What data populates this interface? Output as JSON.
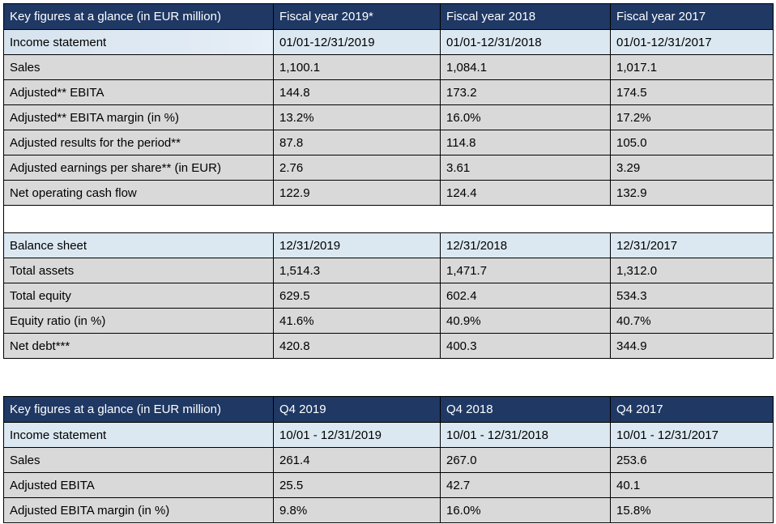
{
  "table1": {
    "headers": [
      "Key figures at a glance (in EUR million)",
      "Fiscal year 2019*",
      "Fiscal year 2018",
      "Fiscal year 2017"
    ],
    "section1": [
      "Income statement",
      "01/01-12/31/2019",
      "01/01-12/31/2018",
      "01/01-12/31/2017"
    ],
    "rows1": [
      [
        "Sales",
        "1,100.1",
        "1,084.1",
        "1,017.1"
      ],
      [
        "Adjusted** EBITA",
        "144.8",
        "173.2",
        "174.5"
      ],
      [
        "Adjusted** EBITA margin (in %)",
        "13.2%",
        "16.0%",
        "17.2%"
      ],
      [
        "Adjusted results for the period**",
        "87.8",
        "114.8",
        "105.0"
      ],
      [
        "Adjusted earnings per share** (in EUR)",
        "2.76",
        "3.61",
        "3.29"
      ],
      [
        "Net operating cash flow",
        "122.9",
        "124.4",
        "132.9"
      ]
    ],
    "section2": [
      "Balance sheet",
      "12/31/2019",
      "12/31/2018",
      "12/31/2017"
    ],
    "rows2": [
      [
        "Total assets",
        "1,514.3",
        "1,471.7",
        "1,312.0"
      ],
      [
        "Total equity",
        "629.5",
        "602.4",
        "534.3"
      ],
      [
        "Equity ratio (in %)",
        "41.6%",
        "40.9%",
        "40.7%"
      ],
      [
        "Net debt***",
        "420.8",
        "400.3",
        "344.9"
      ]
    ]
  },
  "table2": {
    "headers": [
      "Key figures at a glance (in EUR million)",
      "Q4 2019",
      "Q4 2018",
      "Q4 2017"
    ],
    "section1": [
      "Income statement",
      "10/01 - 12/31/2019",
      "10/01 - 12/31/2018",
      "10/01 - 12/31/2017"
    ],
    "rows1": [
      [
        "Sales",
        "261.4",
        "267.0",
        "253.6"
      ],
      [
        "Adjusted EBITA",
        "25.5",
        "42.7",
        "40.1"
      ],
      [
        "Adjusted EBITA margin (in %)",
        "9.8%",
        "16.0%",
        "15.8%"
      ]
    ]
  },
  "colors": {
    "header": "#1f3864",
    "section": "#dbe8f1",
    "row": "#d9d9d9"
  }
}
